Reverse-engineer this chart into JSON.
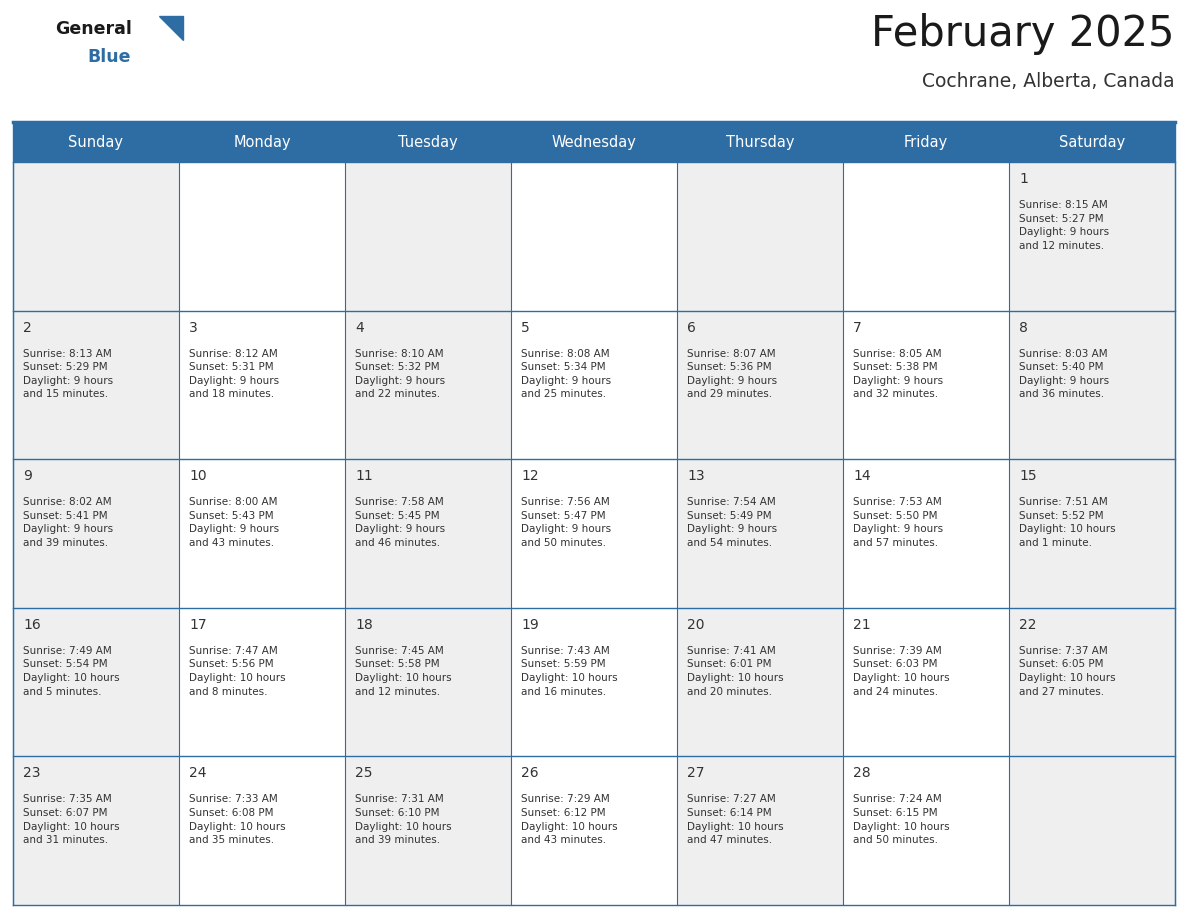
{
  "title": "February 2025",
  "subtitle": "Cochrane, Alberta, Canada",
  "days_of_week": [
    "Sunday",
    "Monday",
    "Tuesday",
    "Wednesday",
    "Thursday",
    "Friday",
    "Saturday"
  ],
  "header_bg": "#2E6DA4",
  "header_text_color": "#FFFFFF",
  "grid_color": "#2E6DA4",
  "day_num_color": "#333333",
  "info_color": "#333333",
  "cell_bg_gray": "#EFEFEF",
  "cell_bg_white": "#FFFFFF",
  "title_color": "#1A1A1A",
  "subtitle_color": "#333333",
  "logo_black": "#1A1A1A",
  "logo_blue": "#2E6DA4",
  "week_rows": [
    {
      "days": [
        null,
        null,
        null,
        null,
        null,
        null,
        1
      ],
      "info": [
        null,
        null,
        null,
        null,
        null,
        null,
        {
          "sr": "8:15 AM",
          "ss": "5:27 PM",
          "dl": "9 hours\nand 12 minutes."
        }
      ]
    },
    {
      "days": [
        2,
        3,
        4,
        5,
        6,
        7,
        8
      ],
      "info": [
        {
          "sr": "8:13 AM",
          "ss": "5:29 PM",
          "dl": "9 hours\nand 15 minutes."
        },
        {
          "sr": "8:12 AM",
          "ss": "5:31 PM",
          "dl": "9 hours\nand 18 minutes."
        },
        {
          "sr": "8:10 AM",
          "ss": "5:32 PM",
          "dl": "9 hours\nand 22 minutes."
        },
        {
          "sr": "8:08 AM",
          "ss": "5:34 PM",
          "dl": "9 hours\nand 25 minutes."
        },
        {
          "sr": "8:07 AM",
          "ss": "5:36 PM",
          "dl": "9 hours\nand 29 minutes."
        },
        {
          "sr": "8:05 AM",
          "ss": "5:38 PM",
          "dl": "9 hours\nand 32 minutes."
        },
        {
          "sr": "8:03 AM",
          "ss": "5:40 PM",
          "dl": "9 hours\nand 36 minutes."
        }
      ]
    },
    {
      "days": [
        9,
        10,
        11,
        12,
        13,
        14,
        15
      ],
      "info": [
        {
          "sr": "8:02 AM",
          "ss": "5:41 PM",
          "dl": "9 hours\nand 39 minutes."
        },
        {
          "sr": "8:00 AM",
          "ss": "5:43 PM",
          "dl": "9 hours\nand 43 minutes."
        },
        {
          "sr": "7:58 AM",
          "ss": "5:45 PM",
          "dl": "9 hours\nand 46 minutes."
        },
        {
          "sr": "7:56 AM",
          "ss": "5:47 PM",
          "dl": "9 hours\nand 50 minutes."
        },
        {
          "sr": "7:54 AM",
          "ss": "5:49 PM",
          "dl": "9 hours\nand 54 minutes."
        },
        {
          "sr": "7:53 AM",
          "ss": "5:50 PM",
          "dl": "9 hours\nand 57 minutes."
        },
        {
          "sr": "7:51 AM",
          "ss": "5:52 PM",
          "dl": "10 hours\nand 1 minute."
        }
      ]
    },
    {
      "days": [
        16,
        17,
        18,
        19,
        20,
        21,
        22
      ],
      "info": [
        {
          "sr": "7:49 AM",
          "ss": "5:54 PM",
          "dl": "10 hours\nand 5 minutes."
        },
        {
          "sr": "7:47 AM",
          "ss": "5:56 PM",
          "dl": "10 hours\nand 8 minutes."
        },
        {
          "sr": "7:45 AM",
          "ss": "5:58 PM",
          "dl": "10 hours\nand 12 minutes."
        },
        {
          "sr": "7:43 AM",
          "ss": "5:59 PM",
          "dl": "10 hours\nand 16 minutes."
        },
        {
          "sr": "7:41 AM",
          "ss": "6:01 PM",
          "dl": "10 hours\nand 20 minutes."
        },
        {
          "sr": "7:39 AM",
          "ss": "6:03 PM",
          "dl": "10 hours\nand 24 minutes."
        },
        {
          "sr": "7:37 AM",
          "ss": "6:05 PM",
          "dl": "10 hours\nand 27 minutes."
        }
      ]
    },
    {
      "days": [
        23,
        24,
        25,
        26,
        27,
        28,
        null
      ],
      "info": [
        {
          "sr": "7:35 AM",
          "ss": "6:07 PM",
          "dl": "10 hours\nand 31 minutes."
        },
        {
          "sr": "7:33 AM",
          "ss": "6:08 PM",
          "dl": "10 hours\nand 35 minutes."
        },
        {
          "sr": "7:31 AM",
          "ss": "6:10 PM",
          "dl": "10 hours\nand 39 minutes."
        },
        {
          "sr": "7:29 AM",
          "ss": "6:12 PM",
          "dl": "10 hours\nand 43 minutes."
        },
        {
          "sr": "7:27 AM",
          "ss": "6:14 PM",
          "dl": "10 hours\nand 47 minutes."
        },
        {
          "sr": "7:24 AM",
          "ss": "6:15 PM",
          "dl": "10 hours\nand 50 minutes."
        },
        null
      ]
    }
  ]
}
